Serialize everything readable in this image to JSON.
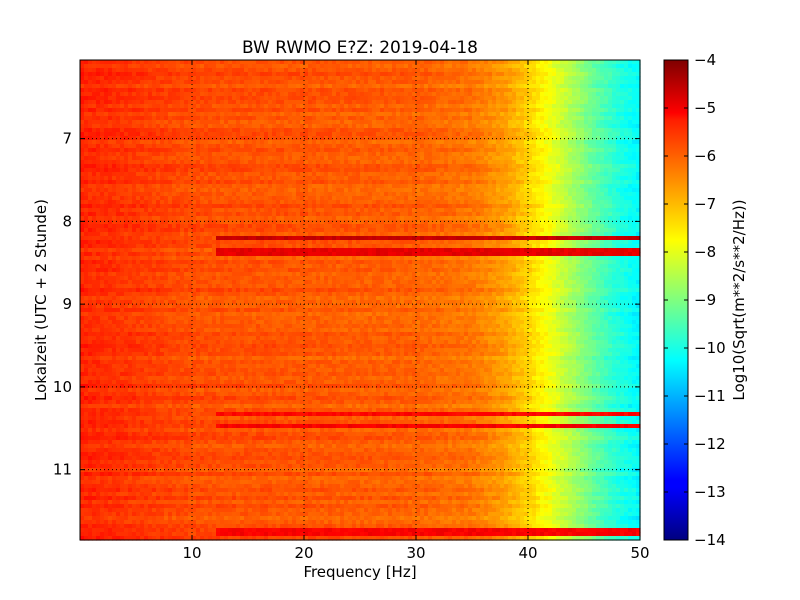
{
  "chart_data": {
    "type": "heatmap",
    "title": "BW RWMO E?Z: 2019-04-18",
    "xlabel": "Frequency [Hz]",
    "ylabel": "Lokalzeit (UTC + 2 Stunde)",
    "xlim": [
      0,
      50
    ],
    "ylim": [
      6.05,
      11.85
    ],
    "y_inverted": true,
    "grid": true,
    "x_ticks": [
      10,
      20,
      30,
      40,
      50
    ],
    "y_ticks": [
      7,
      8,
      9,
      10,
      11
    ],
    "colorbar": {
      "label": "Log10(Sqrt(m**2/s**2/Hz))",
      "range": [
        -14,
        -4
      ],
      "ticks": [
        -4,
        -5,
        -6,
        -7,
        -8,
        -9,
        -10,
        -11,
        -12,
        -13,
        -14
      ],
      "colormap": "jet"
    },
    "frequency_profile_hz": [
      0,
      5,
      10,
      20,
      30,
      35,
      38,
      40,
      42,
      44,
      46,
      48,
      50
    ],
    "frequency_profile_value": [
      -5.6,
      -5.8,
      -6.0,
      -6.1,
      -6.2,
      -6.4,
      -6.8,
      -7.3,
      -7.9,
      -8.6,
      -9.3,
      -9.9,
      -10.3
    ],
    "bands": [
      {
        "time": 8.2,
        "value": -4.7
      },
      {
        "time": 8.38,
        "value": -5.0
      },
      {
        "time": 10.33,
        "value": -5.3
      },
      {
        "time": 10.47,
        "value": -5.2
      },
      {
        "time": 11.75,
        "value": -5.2
      }
    ]
  }
}
